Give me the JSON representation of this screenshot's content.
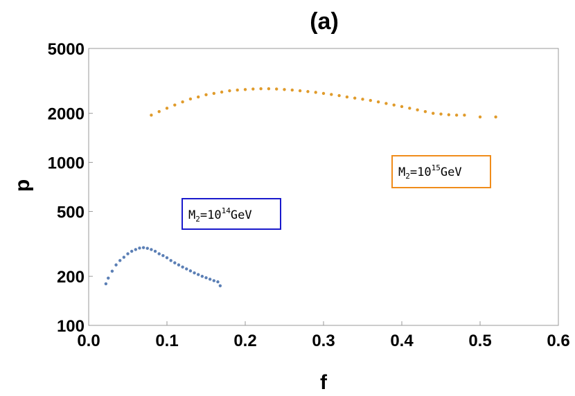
{
  "chart_data": {
    "type": "scatter",
    "title": "(a)",
    "xlabel": "f",
    "ylabel": "p",
    "xlim": [
      0.0,
      0.6
    ],
    "ylim": [
      100,
      5000
    ],
    "y_scale": "log",
    "grid": false,
    "x_ticks": [
      "0.0",
      "0.1",
      "0.2",
      "0.3",
      "0.4",
      "0.5",
      "0.6"
    ],
    "y_ticks": [
      "100",
      "200",
      "500",
      "1000",
      "2000",
      "5000"
    ],
    "x_tick_values": [
      0.0,
      0.1,
      0.2,
      0.3,
      0.4,
      0.5,
      0.6
    ],
    "y_tick_values": [
      100,
      200,
      500,
      1000,
      2000,
      5000
    ],
    "series": [
      {
        "label_parts": {
          "main": "M",
          "sub": "2",
          "eq": "=10",
          "sup": "14",
          "unit": "GeV"
        },
        "color": "#5b7fb5",
        "box_color": "#1a1acc",
        "x_range": [
          0.022,
          0.168
        ],
        "y_range": [
          160,
          320
        ],
        "points": [
          [
            0.022,
            180
          ],
          [
            0.025,
            195
          ],
          [
            0.03,
            215
          ],
          [
            0.035,
            235
          ],
          [
            0.04,
            250
          ],
          [
            0.045,
            262
          ],
          [
            0.05,
            275
          ],
          [
            0.055,
            285
          ],
          [
            0.06,
            292
          ],
          [
            0.065,
            298
          ],
          [
            0.07,
            300
          ],
          [
            0.075,
            297
          ],
          [
            0.08,
            292
          ],
          [
            0.085,
            285
          ],
          [
            0.09,
            275
          ],
          [
            0.095,
            268
          ],
          [
            0.1,
            260
          ],
          [
            0.105,
            250
          ],
          [
            0.11,
            242
          ],
          [
            0.115,
            235
          ],
          [
            0.12,
            228
          ],
          [
            0.125,
            222
          ],
          [
            0.13,
            216
          ],
          [
            0.135,
            210
          ],
          [
            0.14,
            205
          ],
          [
            0.145,
            200
          ],
          [
            0.15,
            196
          ],
          [
            0.155,
            192
          ],
          [
            0.16,
            188
          ],
          [
            0.165,
            185
          ],
          [
            0.168,
            175
          ]
        ]
      },
      {
        "label_parts": {
          "main": "M",
          "sub": "2",
          "eq": "=10",
          "sup": "15",
          "unit": "GeV"
        },
        "color": "#e09b2b",
        "box_color": "#f08c1a",
        "x_range": [
          0.08,
          0.525
        ],
        "y_range": [
          1600,
          3300
        ],
        "points": [
          [
            0.08,
            1950
          ],
          [
            0.09,
            2050
          ],
          [
            0.1,
            2150
          ],
          [
            0.11,
            2250
          ],
          [
            0.12,
            2350
          ],
          [
            0.13,
            2450
          ],
          [
            0.14,
            2520
          ],
          [
            0.15,
            2600
          ],
          [
            0.16,
            2650
          ],
          [
            0.17,
            2700
          ],
          [
            0.18,
            2750
          ],
          [
            0.19,
            2780
          ],
          [
            0.2,
            2800
          ],
          [
            0.21,
            2820
          ],
          [
            0.22,
            2830
          ],
          [
            0.23,
            2830
          ],
          [
            0.24,
            2820
          ],
          [
            0.25,
            2800
          ],
          [
            0.26,
            2780
          ],
          [
            0.27,
            2750
          ],
          [
            0.28,
            2720
          ],
          [
            0.29,
            2690
          ],
          [
            0.3,
            2650
          ],
          [
            0.31,
            2610
          ],
          [
            0.32,
            2570
          ],
          [
            0.33,
            2520
          ],
          [
            0.34,
            2480
          ],
          [
            0.35,
            2440
          ],
          [
            0.36,
            2400
          ],
          [
            0.37,
            2350
          ],
          [
            0.38,
            2300
          ],
          [
            0.39,
            2250
          ],
          [
            0.4,
            2200
          ],
          [
            0.41,
            2150
          ],
          [
            0.42,
            2100
          ],
          [
            0.43,
            2050
          ],
          [
            0.44,
            2000
          ],
          [
            0.45,
            1980
          ],
          [
            0.46,
            1960
          ],
          [
            0.47,
            1950
          ],
          [
            0.48,
            1950
          ],
          [
            0.5,
            1900
          ],
          [
            0.52,
            1900
          ]
        ]
      }
    ]
  }
}
